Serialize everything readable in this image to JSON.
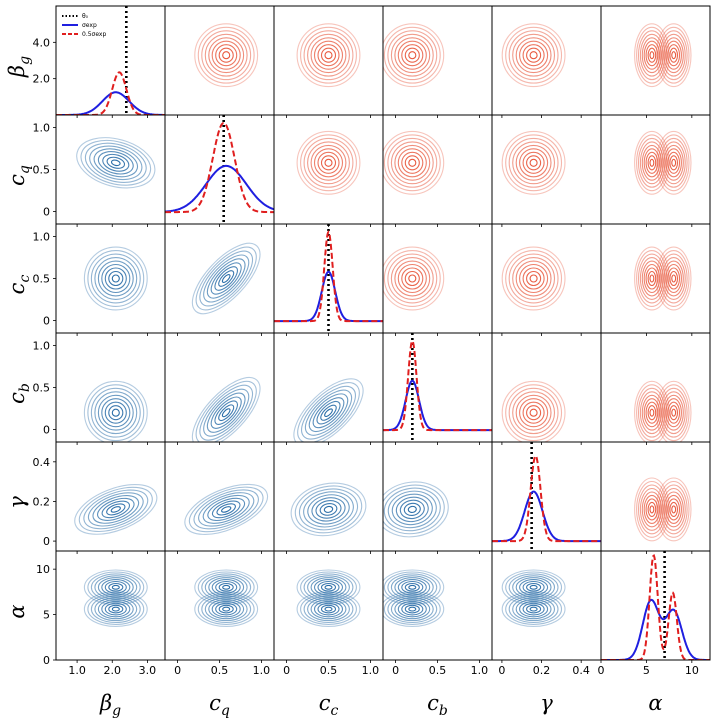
{
  "chart_data": {
    "type": "corner",
    "parameters": [
      {
        "key": "beta_g",
        "base": "β",
        "sub": "g",
        "lim": [
          0.4,
          3.5
        ],
        "ticks": [
          "1.0",
          "2.0",
          "3.0"
        ],
        "tickvals": [
          1.0,
          2.0,
          3.0
        ],
        "truth": 2.4,
        "diag": {
          "sexp": [
            2.1,
            0.38,
            1.25
          ],
          "half": [
            2.2,
            0.2,
            2.35
          ]
        }
      },
      {
        "key": "c_q",
        "base": "c",
        "sub": "q",
        "lim": [
          -0.15,
          1.15
        ],
        "ticks": [
          "0",
          "0.5",
          "1.0"
        ],
        "tickvals": [
          0.0,
          0.5,
          1.0
        ],
        "truth": 0.55,
        "diag": {
          "sexp": [
            0.58,
            0.24,
            0.58
          ],
          "half": [
            0.55,
            0.13,
            1.12
          ]
        }
      },
      {
        "key": "c_c",
        "base": "c",
        "sub": "c",
        "lim": [
          -0.15,
          1.15
        ],
        "ticks": [
          "0",
          "0.5",
          "1.0"
        ],
        "tickvals": [
          0.0,
          0.5,
          1.0
        ],
        "truth": 0.5,
        "diag": {
          "sexp": [
            0.5,
            0.08,
            0.62
          ],
          "half": [
            0.5,
            0.05,
            1.12
          ]
        }
      },
      {
        "key": "c_b",
        "base": "c",
        "sub": "b",
        "lim": [
          -0.15,
          1.15
        ],
        "ticks": [
          "0",
          "0.5",
          "1.0"
        ],
        "tickvals": [
          0.0,
          0.5,
          1.0
        ],
        "truth": 0.2,
        "diag": {
          "sexp": [
            0.2,
            0.08,
            0.62
          ],
          "half": [
            0.2,
            0.05,
            1.12
          ]
        }
      },
      {
        "key": "gamma",
        "base": "γ",
        "sub": "",
        "lim": [
          -0.05,
          0.5
        ],
        "ticks": [
          "0",
          "0.2",
          "0.4"
        ],
        "tickvals": [
          0.0,
          0.2,
          0.4
        ],
        "truth": 0.15,
        "diag": {
          "sexp": [
            0.16,
            0.045,
            0.25
          ],
          "half": [
            0.17,
            0.025,
            0.43
          ]
        }
      },
      {
        "key": "alpha",
        "base": "α",
        "sub": "",
        "lim": [
          0.0,
          12.0
        ],
        "ticks": [
          "0",
          "5",
          "10"
        ],
        "tickvals": [
          0,
          5,
          10
        ],
        "truth": 7.0,
        "diag": {
          "sexp_bimodal": [
            [
              5.5,
              0.9,
              6.5
            ],
            [
              8.0,
              0.9,
              5.4
            ]
          ],
          "half_bimodal": [
            [
              5.8,
              0.45,
              11.5
            ],
            [
              7.9,
              0.45,
              7.4
            ]
          ]
        }
      }
    ],
    "legend": [
      {
        "label": "θ₀",
        "style": "dotted",
        "color": "#000000"
      },
      {
        "label": "σexp",
        "style": "solid",
        "color": "#1f1fe0"
      },
      {
        "label": "0.5σexp",
        "style": "dashed",
        "color": "#e01f1f"
      }
    ],
    "lower_color": "#2b6ea8",
    "upper_color": "#e8593e",
    "diag_ylim_note": "β_g diagonal shares axis with ticks 2.0 and 4.0",
    "beta_diag_ticks": [
      "2.0",
      "4.0"
    ],
    "beta_diag_tickvals": [
      2.0,
      4.0
    ],
    "beta_diag_ylim": [
      0,
      6
    ]
  }
}
